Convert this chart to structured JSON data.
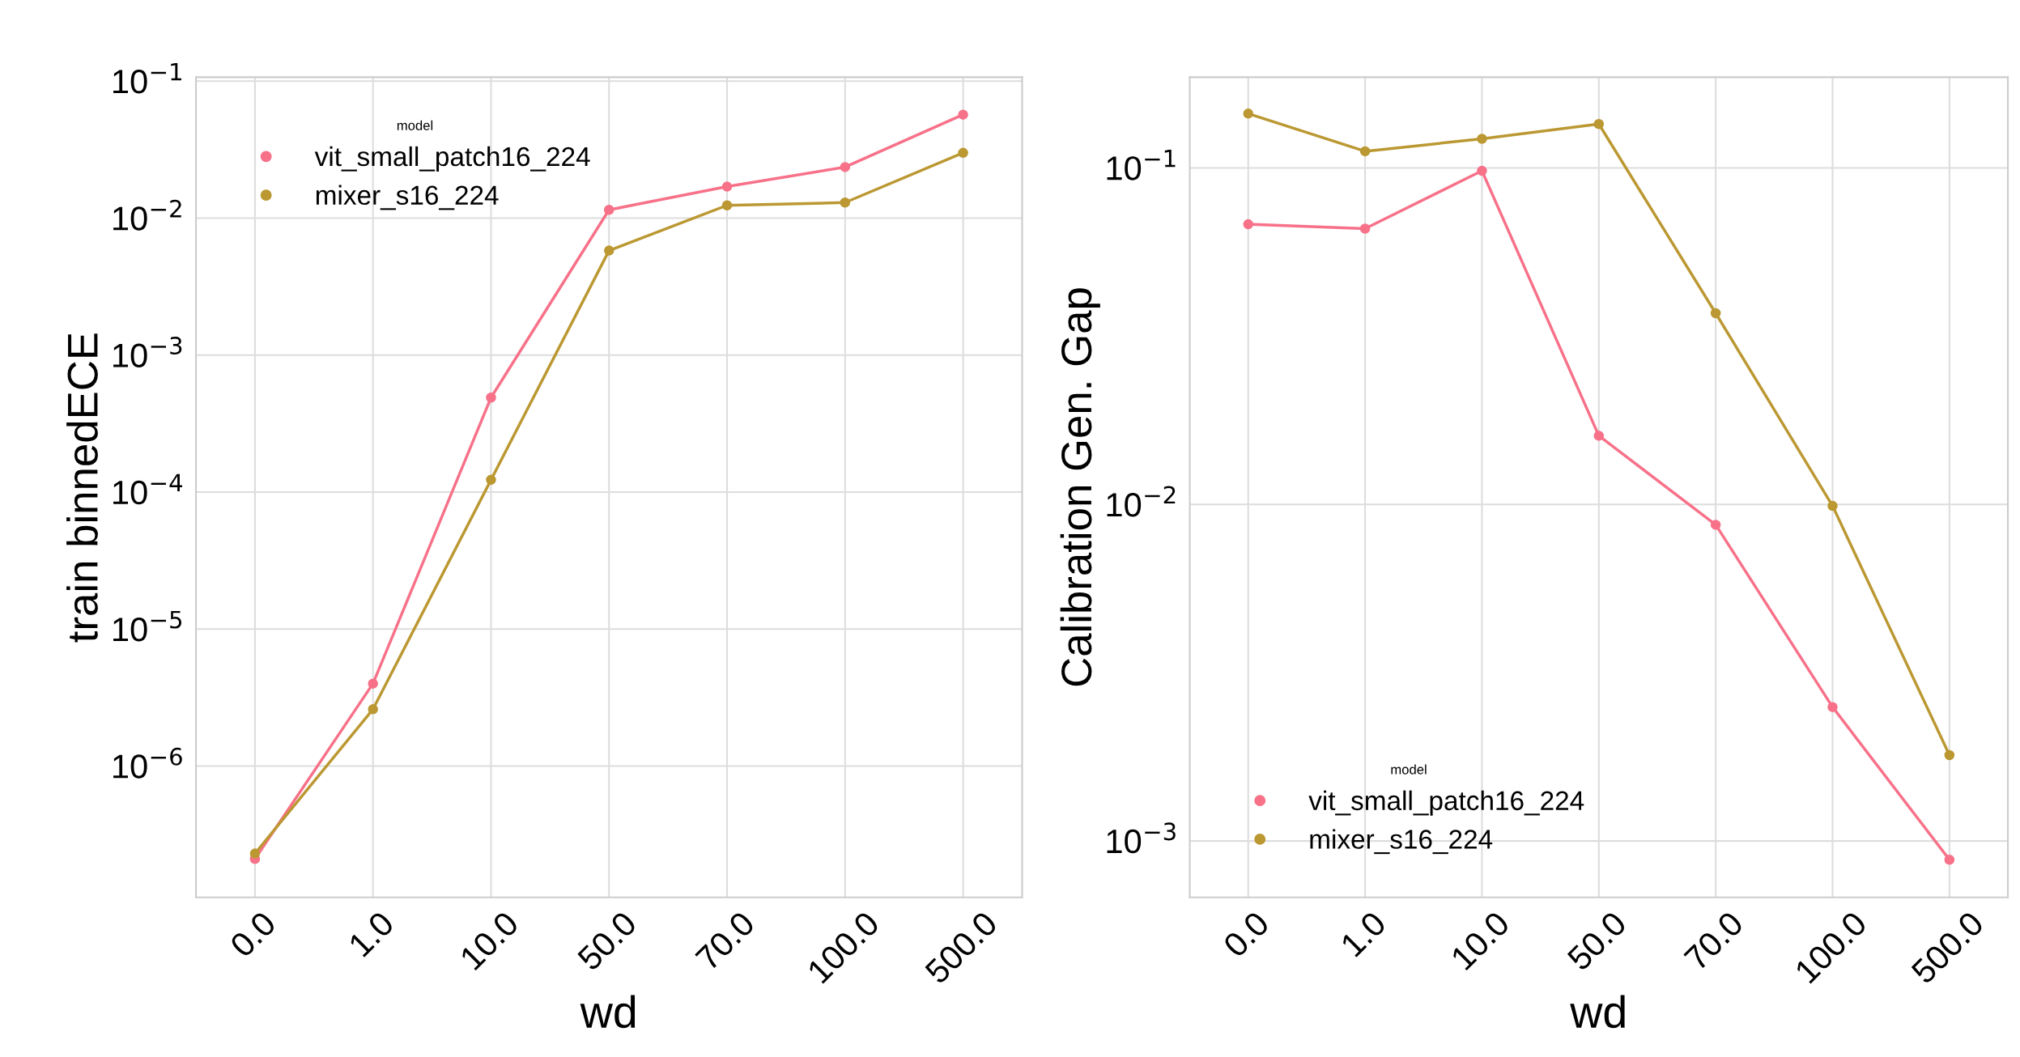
{
  "chart_data": [
    {
      "type": "line",
      "xlabel": "wd",
      "ylabel": "train binnedECE",
      "legend_title": "model",
      "legend": "top left",
      "log": "y",
      "grid": true,
      "marker": "circle",
      "line_style": "solid",
      "categories": [
        "0.0",
        "1.0",
        "10.0",
        "50.0",
        "70.0",
        "100.0",
        "500.0"
      ],
      "ylim": [
        1.1e-07,
        0.107
      ],
      "yticks": [
        {
          "value": 1e-06,
          "label": "10$^{−6}$"
        },
        {
          "value": 1e-05,
          "label": "10$^{−5}$"
        },
        {
          "value": 0.0001,
          "label": "10$^{−4}$"
        },
        {
          "value": 0.001,
          "label": "10$^{−3}$"
        },
        {
          "value": 0.01,
          "label": "10$^{−2}$"
        },
        {
          "value": 0.1,
          "label": "10$^{−1}$"
        }
      ],
      "series": [
        {
          "name": "vit_small_patch16_224",
          "color": "#f77189",
          "values": [
            2.1e-07,
            4e-06,
            0.00049,
            0.0115,
            0.017,
            0.0236,
            0.057
          ]
        },
        {
          "name": "mixer_s16_224",
          "color": "#bb9832",
          "values": [
            2.3e-07,
            2.6e-06,
            0.000123,
            0.0058,
            0.0124,
            0.013,
            0.03
          ]
        }
      ]
    },
    {
      "type": "line",
      "xlabel": "wd",
      "ylabel": "Calibration Gen. Gap",
      "legend_title": "model",
      "legend": "bottom left",
      "log": "y",
      "grid": true,
      "marker": "circle",
      "line_style": "solid",
      "categories": [
        "0.0",
        "1.0",
        "10.0",
        "50.0",
        "70.0",
        "100.0",
        "500.0"
      ],
      "ylim": [
        0.00068,
        0.186
      ],
      "yticks": [
        {
          "value": 0.001,
          "label": "10$^{−3}$"
        },
        {
          "value": 0.01,
          "label": "10$^{−2}$"
        },
        {
          "value": 0.1,
          "label": "10$^{−1}$"
        }
      ],
      "series": [
        {
          "name": "vit_small_patch16_224",
          "color": "#f77189",
          "values": [
            0.068,
            0.066,
            0.098,
            0.016,
            0.0087,
            0.0025,
            0.00088
          ]
        },
        {
          "name": "mixer_s16_224",
          "color": "#bb9832",
          "values": [
            0.145,
            0.112,
            0.122,
            0.135,
            0.037,
            0.0099,
            0.0018
          ]
        }
      ]
    }
  ]
}
